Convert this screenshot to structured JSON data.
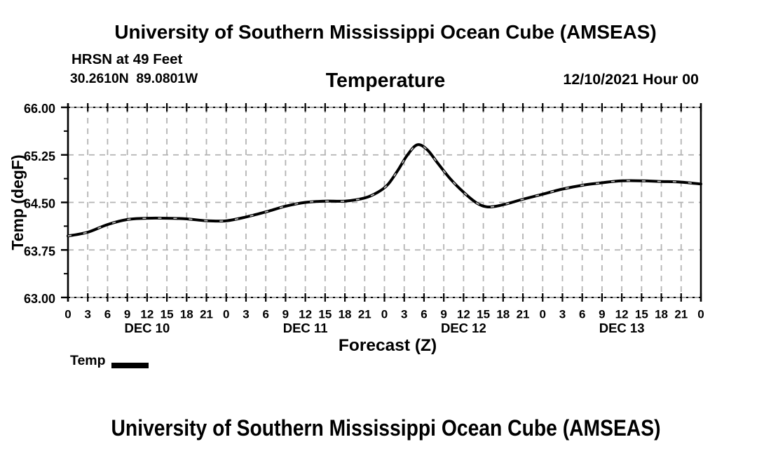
{
  "page": {
    "top_title": "University of Southern Mississippi Ocean Cube (AMSEAS)",
    "bottom_title": "University of Southern Mississippi Ocean Cube (AMSEAS)"
  },
  "header": {
    "station": "HRSN at 49 Feet",
    "coordinates": "30.2610N  89.0801W",
    "plot_title": "Temperature",
    "datetime": "12/10/2021 Hour 00"
  },
  "legend": {
    "label": "Temp",
    "swatch_color": "#000000"
  },
  "chart_data": {
    "type": "line",
    "title": "Temperature",
    "xlabel": "Forecast (Z)",
    "ylabel": "Temp (degF)",
    "ylim": [
      63.0,
      66.0
    ],
    "xlim_hours": [
      0,
      96
    ],
    "y_tick_values": [
      66.0,
      65.25,
      64.5,
      63.75,
      63.0
    ],
    "y_tick_labels": [
      "66.00",
      "65.25",
      "64.50",
      "63.75",
      "63.00"
    ],
    "y_minor_step": 0.375,
    "x_tick_step_hours": 3,
    "x_tick_labels": [
      "0",
      "3",
      "6",
      "9",
      "12",
      "15",
      "18",
      "21",
      "0",
      "3",
      "6",
      "9",
      "12",
      "15",
      "18",
      "21",
      "0",
      "3",
      "6",
      "9",
      "12",
      "15",
      "18",
      "21",
      "0",
      "3",
      "6",
      "9",
      "12",
      "15",
      "18",
      "21",
      "0"
    ],
    "day_labels": [
      "DEC 10",
      "DEC 11",
      "DEC 12",
      "DEC 13"
    ],
    "grid": true,
    "legend_position": "bottom-left",
    "series": [
      {
        "name": "Temp",
        "color": "#000000",
        "points": [
          [
            0,
            63.97
          ],
          [
            3,
            64.03
          ],
          [
            6,
            64.15
          ],
          [
            9,
            64.23
          ],
          [
            12,
            64.25
          ],
          [
            15,
            64.25
          ],
          [
            18,
            64.24
          ],
          [
            21,
            64.21
          ],
          [
            24,
            64.21
          ],
          [
            27,
            64.27
          ],
          [
            30,
            64.35
          ],
          [
            33,
            64.44
          ],
          [
            36,
            64.5
          ],
          [
            39,
            64.52
          ],
          [
            42,
            64.52
          ],
          [
            45,
            64.57
          ],
          [
            47,
            64.66
          ],
          [
            48.5,
            64.78
          ],
          [
            50,
            65.0
          ],
          [
            51.5,
            65.25
          ],
          [
            53,
            65.41
          ],
          [
            54.5,
            65.33
          ],
          [
            56,
            65.13
          ],
          [
            58,
            64.87
          ],
          [
            60,
            64.66
          ],
          [
            62,
            64.49
          ],
          [
            63.5,
            64.43
          ],
          [
            65,
            64.44
          ],
          [
            67,
            64.49
          ],
          [
            69,
            64.55
          ],
          [
            72,
            64.63
          ],
          [
            75,
            64.71
          ],
          [
            78,
            64.77
          ],
          [
            81,
            64.81
          ],
          [
            84,
            64.84
          ],
          [
            87,
            64.84
          ],
          [
            90,
            64.83
          ],
          [
            93,
            64.82
          ],
          [
            96,
            64.79
          ]
        ]
      }
    ]
  }
}
